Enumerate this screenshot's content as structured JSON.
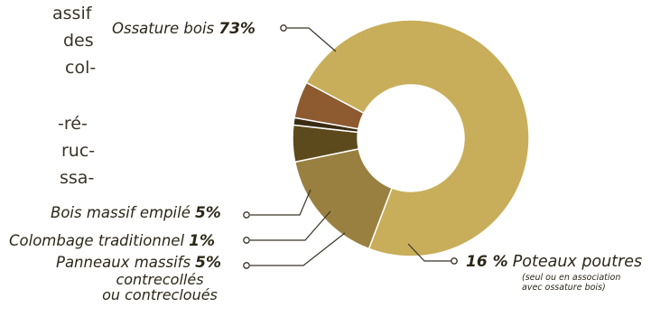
{
  "body_text_lines": [
    "assif",
    "des",
    "col-",
    "-ré-",
    "ruc-",
    "ssa-"
  ],
  "chart_data": {
    "type": "pie",
    "style": "donut",
    "slices": [
      {
        "label": "Ossature bois",
        "value": 73,
        "value_label": "73%",
        "color": "#c8ae5a"
      },
      {
        "label": "Poteaux poutres",
        "value": 16,
        "value_label": "16 %",
        "note": [
          "(seul ou en association",
          "avec ossature bois)"
        ],
        "color": "#9a8040"
      },
      {
        "label": "Panneaux massifs",
        "label_extra": [
          "contrecollés",
          "ou contrecloués"
        ],
        "value": 5,
        "value_label": "5%",
        "color": "#5d4a1c"
      },
      {
        "label": "Colombage traditionnel",
        "value": 1,
        "value_label": "1%",
        "color": "#3a2c12"
      },
      {
        "label": "Bois massif empilé",
        "value": 5,
        "value_label": "5%",
        "color": "#8e5a30"
      }
    ]
  }
}
